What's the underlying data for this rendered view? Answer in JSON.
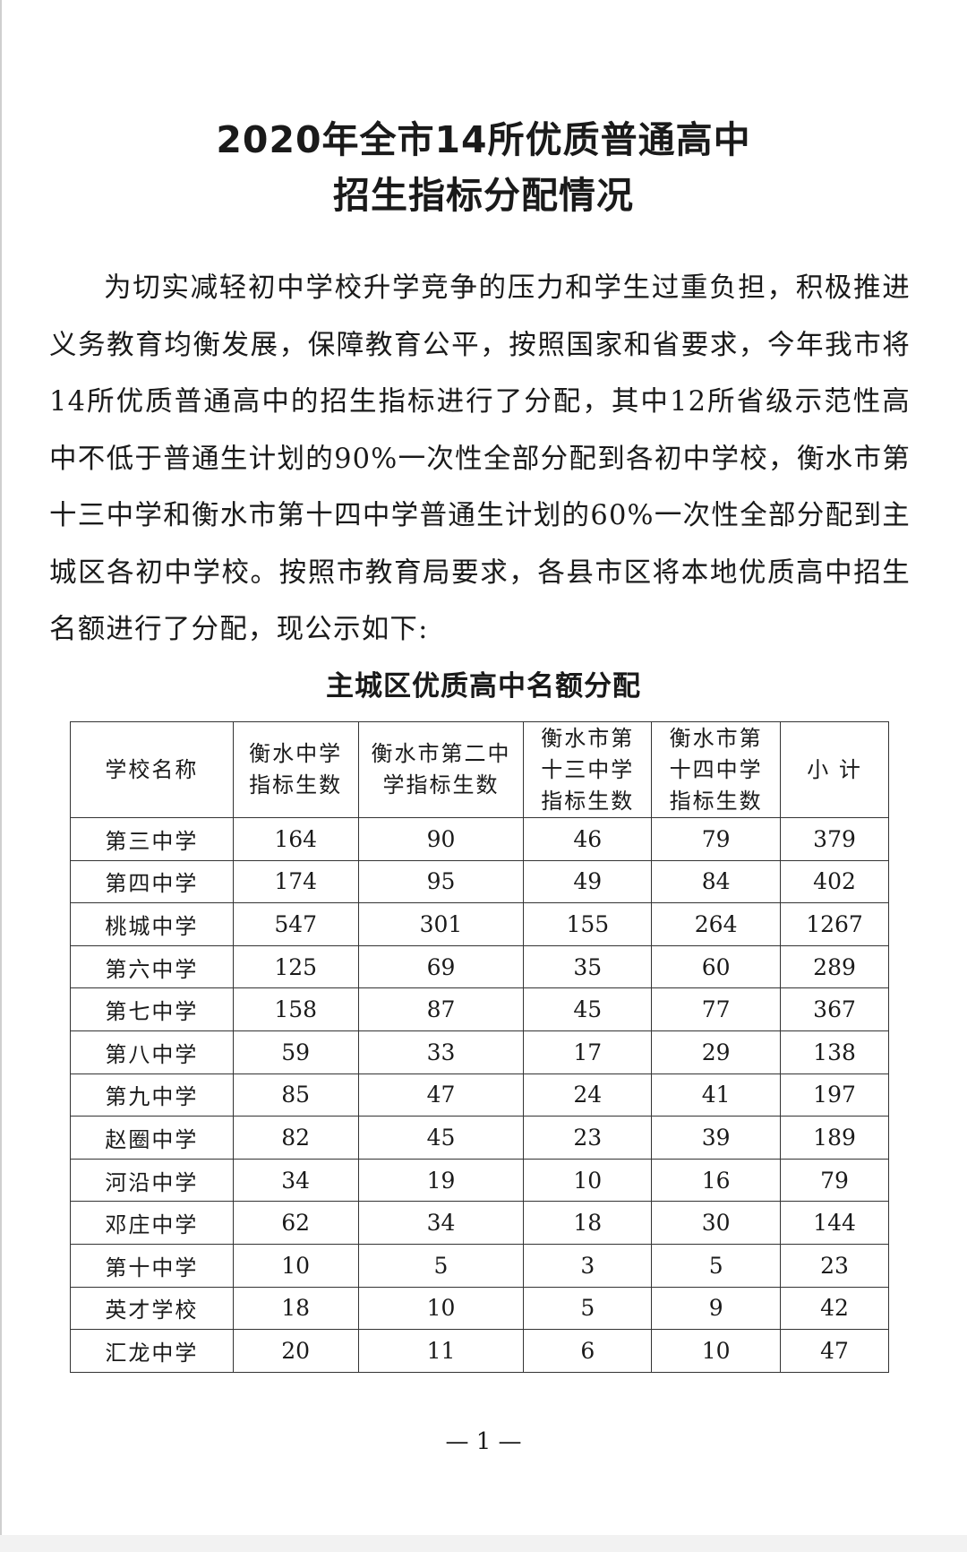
{
  "title_line1": "2020年全市14所优质普通高中",
  "title_line2": "招生指标分配情况",
  "paragraph": "为切实减轻初中学校升学竞争的压力和学生过重负担，积极推进义务教育均衡发展，保障教育公平，按照国家和省要求，今年我市将14所优质普通高中的招生指标进行了分配，其中12所省级示范性高中不低于普通生计划的90%一次性全部分配到各初中学校，衡水市第十三中学和衡水市第十四中学普通生计划的60%一次性全部分配到主城区各初中学校。按照市教育局要求，各县市区将本地优质高中招生名额进行了分配，现公示如下:",
  "table_title": "主城区优质高中名额分配",
  "table": {
    "headers": [
      [
        "学校名称"
      ],
      [
        "衡水中学",
        "指标生数"
      ],
      [
        "衡水市第二中",
        "学指标生数"
      ],
      [
        "衡水市第",
        "十三中学",
        "指标生数"
      ],
      [
        "衡水市第",
        "十四中学",
        "指标生数"
      ],
      [
        "小 计"
      ]
    ],
    "rows": [
      [
        "第三中学",
        "164",
        "90",
        "46",
        "79",
        "379"
      ],
      [
        "第四中学",
        "174",
        "95",
        "49",
        "84",
        "402"
      ],
      [
        "桃城中学",
        "547",
        "301",
        "155",
        "264",
        "1267"
      ],
      [
        "第六中学",
        "125",
        "69",
        "35",
        "60",
        "289"
      ],
      [
        "第七中学",
        "158",
        "87",
        "45",
        "77",
        "367"
      ],
      [
        "第八中学",
        "59",
        "33",
        "17",
        "29",
        "138"
      ],
      [
        "第九中学",
        "85",
        "47",
        "24",
        "41",
        "197"
      ],
      [
        "赵圈中学",
        "82",
        "45",
        "23",
        "39",
        "189"
      ],
      [
        "河沿中学",
        "34",
        "19",
        "10",
        "16",
        "79"
      ],
      [
        "邓庄中学",
        "62",
        "34",
        "18",
        "30",
        "144"
      ],
      [
        "第十中学",
        "10",
        "5",
        "3",
        "5",
        "23"
      ],
      [
        "英才学校",
        "18",
        "10",
        "5",
        "9",
        "42"
      ],
      [
        "汇龙中学",
        "20",
        "11",
        "6",
        "10",
        "47"
      ]
    ]
  },
  "page_number": "— 1 —"
}
